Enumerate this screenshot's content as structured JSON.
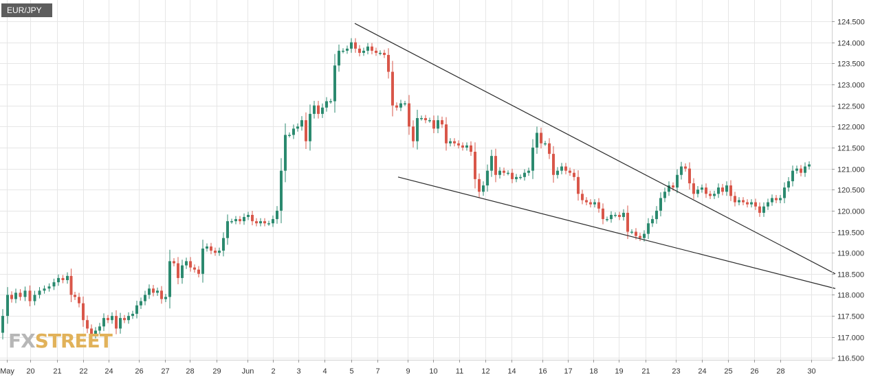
{
  "chart_data": {
    "type": "candlestick",
    "symbol": "EUR/JPY",
    "ylim": [
      116.5,
      124.85
    ],
    "y_ticks": [
      116.5,
      117.0,
      117.5,
      118.0,
      118.5,
      119.0,
      119.5,
      120.0,
      120.5,
      121.0,
      121.5,
      122.0,
      122.5,
      123.0,
      123.5,
      124.0,
      124.5
    ],
    "y_tick_labels": [
      "116.500",
      "117.000",
      "117.500",
      "118.000",
      "118.500",
      "119.000",
      "119.500",
      "120.000",
      "120.500",
      "121.000",
      "121.500",
      "122.000",
      "122.500",
      "123.000",
      "123.500",
      "124.000",
      "124.500"
    ],
    "x_labels": [
      "May",
      "20",
      "21",
      "22",
      "24",
      "26",
      "27",
      "28",
      "29",
      "Jun",
      "2",
      "3",
      "4",
      "5",
      "7",
      "9",
      "10",
      "11",
      "12",
      "14",
      "16",
      "17",
      "18",
      "19",
      "21",
      "23",
      "24",
      "25",
      "26",
      "28",
      "30"
    ],
    "grid": true,
    "colors": {
      "up": "#2b8a6f",
      "down": "#d9574a",
      "grid": "#e6e6e6",
      "trendline": "#2a2a2a"
    },
    "anchors": [
      [
        0,
        117.1
      ],
      [
        8,
        117.5
      ],
      [
        14,
        118.0
      ],
      [
        20,
        117.9
      ],
      [
        26,
        118.05
      ],
      [
        33,
        117.95
      ],
      [
        40,
        118.1
      ],
      [
        47,
        117.85
      ],
      [
        54,
        118.0
      ],
      [
        61,
        118.1
      ],
      [
        68,
        118.15
      ],
      [
        75,
        118.2
      ],
      [
        82,
        118.3
      ],
      [
        88,
        118.4
      ],
      [
        95,
        118.35
      ],
      [
        101,
        118.45
      ],
      [
        106,
        118.0
      ],
      [
        112,
        117.95
      ],
      [
        118,
        117.8
      ],
      [
        124,
        117.4
      ],
      [
        130,
        117.2
      ],
      [
        136,
        117.05
      ],
      [
        142,
        117.15
      ],
      [
        148,
        117.25
      ],
      [
        154,
        117.45
      ],
      [
        160,
        117.4
      ],
      [
        166,
        117.5
      ],
      [
        172,
        117.2
      ],
      [
        178,
        117.45
      ],
      [
        184,
        117.4
      ],
      [
        190,
        117.5
      ],
      [
        196,
        117.55
      ],
      [
        202,
        117.75
      ],
      [
        208,
        117.85
      ],
      [
        214,
        118.0
      ],
      [
        220,
        118.15
      ],
      [
        226,
        118.05
      ],
      [
        232,
        118.1
      ],
      [
        238,
        117.9
      ],
      [
        244,
        117.95
      ],
      [
        250,
        118.8
      ],
      [
        256,
        118.75
      ],
      [
        262,
        118.4
      ],
      [
        268,
        118.7
      ],
      [
        274,
        118.8
      ],
      [
        280,
        118.65
      ],
      [
        286,
        118.6
      ],
      [
        292,
        118.5
      ],
      [
        298,
        119.1
      ],
      [
        304,
        119.15
      ],
      [
        310,
        119.05
      ],
      [
        316,
        119.0
      ],
      [
        322,
        119.05
      ],
      [
        328,
        119.35
      ],
      [
        334,
        119.75
      ],
      [
        340,
        119.75
      ],
      [
        346,
        119.8
      ],
      [
        352,
        119.75
      ],
      [
        358,
        119.85
      ],
      [
        364,
        119.9
      ],
      [
        370,
        119.75
      ],
      [
        376,
        119.7
      ],
      [
        382,
        119.75
      ],
      [
        388,
        119.7
      ],
      [
        394,
        119.7
      ],
      [
        400,
        119.8
      ],
      [
        406,
        120.0
      ],
      [
        412,
        120.95
      ],
      [
        418,
        121.8
      ],
      [
        424,
        121.8
      ],
      [
        430,
        121.95
      ],
      [
        436,
        122.0
      ],
      [
        442,
        122.15
      ],
      [
        448,
        121.65
      ],
      [
        454,
        122.3
      ],
      [
        460,
        122.5
      ],
      [
        466,
        122.3
      ],
      [
        472,
        122.45
      ],
      [
        478,
        122.6
      ],
      [
        484,
        122.6
      ],
      [
        490,
        123.45
      ],
      [
        496,
        123.8
      ],
      [
        502,
        123.8
      ],
      [
        508,
        123.85
      ],
      [
        514,
        124.0
      ],
      [
        520,
        123.85
      ],
      [
        526,
        123.75
      ],
      [
        532,
        123.8
      ],
      [
        538,
        123.9
      ],
      [
        544,
        123.8
      ],
      [
        550,
        123.75
      ],
      [
        556,
        123.75
      ],
      [
        562,
        123.7
      ],
      [
        568,
        123.3
      ],
      [
        574,
        122.5
      ],
      [
        580,
        122.45
      ],
      [
        586,
        122.55
      ],
      [
        592,
        122.55
      ],
      [
        598,
        122.0
      ],
      [
        604,
        121.65
      ],
      [
        610,
        122.2
      ],
      [
        616,
        122.2
      ],
      [
        622,
        122.15
      ],
      [
        628,
        122.15
      ],
      [
        634,
        121.95
      ],
      [
        640,
        122.15
      ],
      [
        646,
        122.05
      ],
      [
        652,
        121.6
      ],
      [
        658,
        121.65
      ],
      [
        664,
        121.6
      ],
      [
        670,
        121.55
      ],
      [
        676,
        121.5
      ],
      [
        682,
        121.55
      ],
      [
        688,
        121.4
      ],
      [
        694,
        120.75
      ],
      [
        700,
        120.45
      ],
      [
        706,
        120.6
      ],
      [
        712,
        120.95
      ],
      [
        718,
        121.3
      ],
      [
        724,
        120.85
      ],
      [
        730,
        120.95
      ],
      [
        736,
        120.9
      ],
      [
        742,
        120.9
      ],
      [
        748,
        120.75
      ],
      [
        754,
        120.8
      ],
      [
        760,
        120.8
      ],
      [
        766,
        120.9
      ],
      [
        772,
        120.95
      ],
      [
        778,
        121.5
      ],
      [
        784,
        121.85
      ],
      [
        790,
        121.6
      ],
      [
        796,
        121.6
      ],
      [
        802,
        121.35
      ],
      [
        808,
        120.85
      ],
      [
        814,
        120.95
      ],
      [
        820,
        121.05
      ],
      [
        826,
        120.95
      ],
      [
        832,
        120.9
      ],
      [
        838,
        120.8
      ],
      [
        844,
        120.4
      ],
      [
        850,
        120.25
      ],
      [
        856,
        120.2
      ],
      [
        862,
        120.15
      ],
      [
        868,
        120.2
      ],
      [
        874,
        120.05
      ],
      [
        880,
        119.8
      ],
      [
        886,
        119.8
      ],
      [
        892,
        119.9
      ],
      [
        898,
        119.9
      ],
      [
        904,
        119.85
      ],
      [
        910,
        119.95
      ],
      [
        916,
        119.5
      ],
      [
        922,
        119.5
      ],
      [
        928,
        119.4
      ],
      [
        934,
        119.35
      ],
      [
        940,
        119.45
      ],
      [
        946,
        119.7
      ],
      [
        952,
        119.8
      ],
      [
        958,
        120.0
      ],
      [
        964,
        120.3
      ],
      [
        970,
        120.45
      ],
      [
        976,
        120.6
      ],
      [
        982,
        120.55
      ],
      [
        988,
        120.85
      ],
      [
        994,
        121.05
      ],
      [
        1000,
        121.0
      ],
      [
        1006,
        120.65
      ],
      [
        1012,
        120.4
      ],
      [
        1018,
        120.5
      ],
      [
        1024,
        120.55
      ],
      [
        1030,
        120.4
      ],
      [
        1036,
        120.35
      ],
      [
        1042,
        120.4
      ],
      [
        1048,
        120.55
      ],
      [
        1054,
        120.45
      ],
      [
        1060,
        120.6
      ],
      [
        1066,
        120.35
      ],
      [
        1072,
        120.2
      ],
      [
        1078,
        120.25
      ],
      [
        1084,
        120.2
      ],
      [
        1090,
        120.15
      ],
      [
        1096,
        120.2
      ],
      [
        1102,
        120.1
      ],
      [
        1108,
        119.95
      ],
      [
        1114,
        120.1
      ],
      [
        1120,
        120.2
      ],
      [
        1126,
        120.3
      ],
      [
        1132,
        120.25
      ],
      [
        1138,
        120.3
      ],
      [
        1144,
        120.55
      ],
      [
        1150,
        120.7
      ],
      [
        1156,
        120.95
      ],
      [
        1162,
        121.0
      ],
      [
        1168,
        120.9
      ],
      [
        1174,
        121.05
      ],
      [
        1180,
        121.1
      ]
    ],
    "trendlines": [
      {
        "from": [
          516,
          124.45
        ],
        "to": [
          1215,
          118.5
        ]
      },
      {
        "from": [
          579,
          120.8
        ],
        "to": [
          1215,
          118.15
        ]
      }
    ]
  },
  "symbol_badge": "EUR/JPY",
  "logo": {
    "fx": "FX",
    "street": "STREET"
  }
}
